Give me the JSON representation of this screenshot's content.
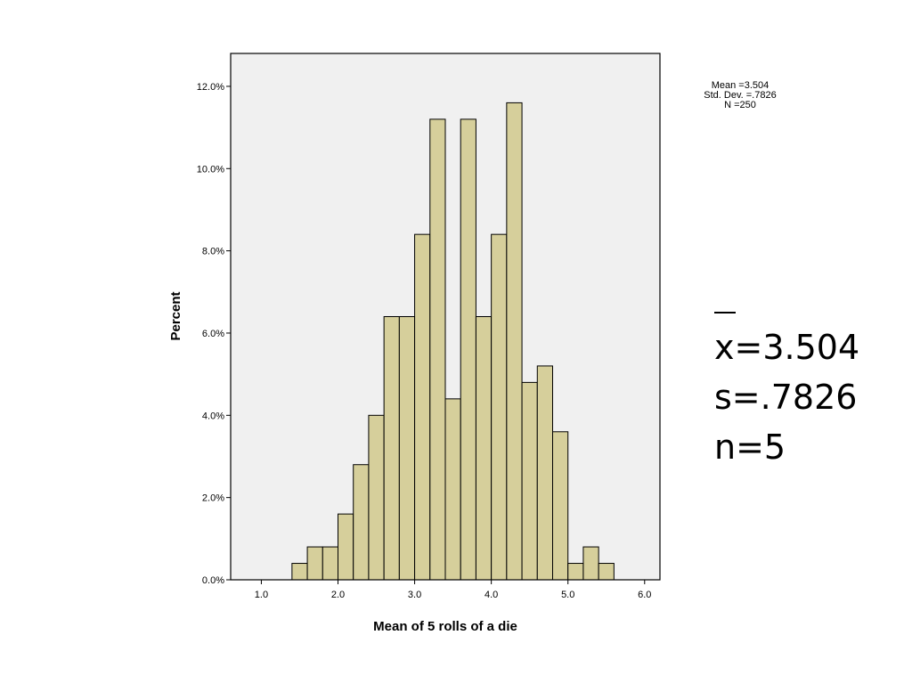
{
  "chart_data": {
    "type": "bar",
    "title": "",
    "xlabel": "Mean of 5 rolls of a die",
    "ylabel": "Percent",
    "xlim": [
      0.6,
      6.2
    ],
    "ylim": [
      0,
      12.8
    ],
    "x_ticks": [
      "1.0",
      "2.0",
      "3.0",
      "4.0",
      "5.0",
      "6.0"
    ],
    "y_ticks": [
      "0.0%",
      "2.0%",
      "4.0%",
      "6.0%",
      "8.0%",
      "10.0%",
      "12.0%"
    ],
    "bin_width": 0.2,
    "bin_starts": [
      1.4,
      1.6,
      1.8,
      2.0,
      2.2,
      2.4,
      2.6,
      2.8,
      3.0,
      3.2,
      3.4,
      3.6,
      3.8,
      4.0,
      4.2,
      4.4,
      4.6,
      4.8,
      5.0,
      5.2,
      5.4
    ],
    "values": [
      0.4,
      0.8,
      0.8,
      1.6,
      2.8,
      4.0,
      6.4,
      6.4,
      8.4,
      11.2,
      4.4,
      11.2,
      6.4,
      8.4,
      11.6,
      4.8,
      5.2,
      3.6,
      0.4,
      0.8,
      0.4
    ],
    "grid": false,
    "bar_color": "#d6cf9b",
    "plot_background": "#f0f0f0",
    "legend_stats": [
      "Mean =3.504",
      "Std. Dev. =.7826",
      "N =250"
    ]
  },
  "slide_stats": {
    "xbar_symbol": "x",
    "mean_text": "=3.504",
    "sd_text": "s=.7826",
    "n_text": "n=5"
  }
}
